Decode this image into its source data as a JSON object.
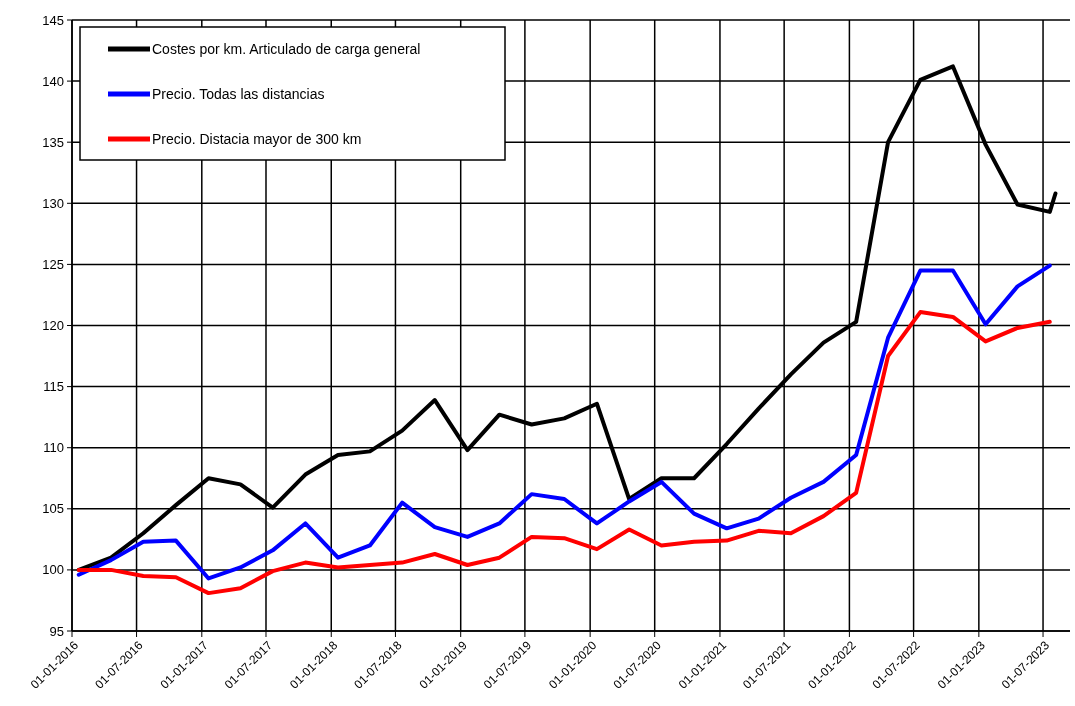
{
  "chart_data": {
    "type": "line",
    "x": [
      "2016-01-20",
      "2016-04-20",
      "2016-07-20",
      "2016-10-20",
      "2017-01-20",
      "2017-04-20",
      "2017-07-20",
      "2017-10-20",
      "2018-01-20",
      "2018-04-20",
      "2018-07-20",
      "2018-10-20",
      "2019-01-20",
      "2019-04-20",
      "2019-07-20",
      "2019-10-20",
      "2020-01-20",
      "2020-04-20",
      "2020-07-20",
      "2020-10-20",
      "2021-01-20",
      "2021-04-20",
      "2021-07-20",
      "2021-10-20",
      "2022-01-20",
      "2022-04-20",
      "2022-07-20",
      "2022-10-20",
      "2023-01-20",
      "2023-04-20",
      "2023-07-20"
    ],
    "series": [
      {
        "name": "Costes por km. Articulado de carga general",
        "color": "#000000",
        "x": [
          "2016-01-20",
          "2016-04-20",
          "2016-07-20",
          "2016-10-20",
          "2017-01-20",
          "2017-04-20",
          "2017-07-20",
          "2017-10-20",
          "2018-01-20",
          "2018-04-20",
          "2018-07-20",
          "2018-10-20",
          "2019-01-20",
          "2019-04-20",
          "2019-07-20",
          "2019-10-20",
          "2020-01-20",
          "2020-04-20",
          "2020-07-20",
          "2020-10-20",
          "2021-01-20",
          "2021-04-20",
          "2021-07-20",
          "2021-10-20",
          "2022-01-20",
          "2022-04-20",
          "2022-07-20",
          "2022-10-20",
          "2023-01-20",
          "2023-04-20",
          "2023-07-20",
          "2023-08-05"
        ],
        "values": [
          100,
          101,
          103,
          105.3,
          107.5,
          107,
          105.1,
          107.8,
          109.4,
          109.7,
          111.4,
          113.9,
          109.8,
          112.7,
          111.9,
          112.4,
          113.6,
          105.8,
          107.5,
          107.5,
          110.3,
          113.2,
          116,
          118.6,
          120.3,
          135,
          140.1,
          141.2,
          134.8,
          129.9,
          129.3,
          130.8
        ]
      },
      {
        "name": "Precio. Todas las distancias",
        "color": "#0000ff",
        "values": [
          99.6,
          100.8,
          102.3,
          102.4,
          99.3,
          100.2,
          101.6,
          103.8,
          101,
          102,
          105.5,
          103.5,
          102.7,
          103.8,
          106.2,
          105.8,
          103.8,
          105.6,
          107.2,
          104.6,
          103.4,
          104.2,
          105.9,
          107.2,
          109.4,
          119,
          124.5,
          124.5,
          120.1,
          123.2,
          124.9
        ]
      },
      {
        "name": "Precio. Distacia mayor de 300 km",
        "color": "#ff0000",
        "values": [
          100,
          100,
          99.5,
          99.4,
          98.1,
          98.5,
          99.9,
          100.6,
          100.2,
          100.4,
          100.6,
          101.3,
          100.4,
          101,
          102.7,
          102.6,
          101.7,
          103.3,
          102,
          102.3,
          102.4,
          103.2,
          103,
          104.4,
          106.3,
          117.5,
          121.1,
          120.7,
          118.7,
          119.8,
          120.3
        ]
      }
    ],
    "xlim": [
      "2016-01-01",
      "2023-09-15"
    ],
    "xticks": [
      {
        "value": "2016-01-01",
        "label": "01-01-2016"
      },
      {
        "value": "2016-07-01",
        "label": "01-07-2016"
      },
      {
        "value": "2017-01-01",
        "label": "01-01-2017"
      },
      {
        "value": "2017-07-01",
        "label": "01-07-2017"
      },
      {
        "value": "2018-01-01",
        "label": "01-01-2018"
      },
      {
        "value": "2018-07-01",
        "label": "01-07-2018"
      },
      {
        "value": "2019-01-01",
        "label": "01-01-2019"
      },
      {
        "value": "2019-07-01",
        "label": "01-07-2019"
      },
      {
        "value": "2020-01-01",
        "label": "01-01-2020"
      },
      {
        "value": "2020-07-01",
        "label": "01-07-2020"
      },
      {
        "value": "2021-01-01",
        "label": "01-01-2021"
      },
      {
        "value": "2021-07-01",
        "label": "01-07-2021"
      },
      {
        "value": "2022-01-01",
        "label": "01-01-2022"
      },
      {
        "value": "2022-07-01",
        "label": "01-07-2022"
      },
      {
        "value": "2023-01-01",
        "label": "01-01-2023"
      },
      {
        "value": "2023-07-01",
        "label": "01-07-2023"
      }
    ],
    "ylim": [
      95,
      145
    ],
    "yticks": [
      95,
      100,
      105,
      110,
      115,
      120,
      125,
      130,
      135,
      140,
      145
    ],
    "grid": true,
    "legend": "top left",
    "marker": "none",
    "line_style": "solid"
  }
}
